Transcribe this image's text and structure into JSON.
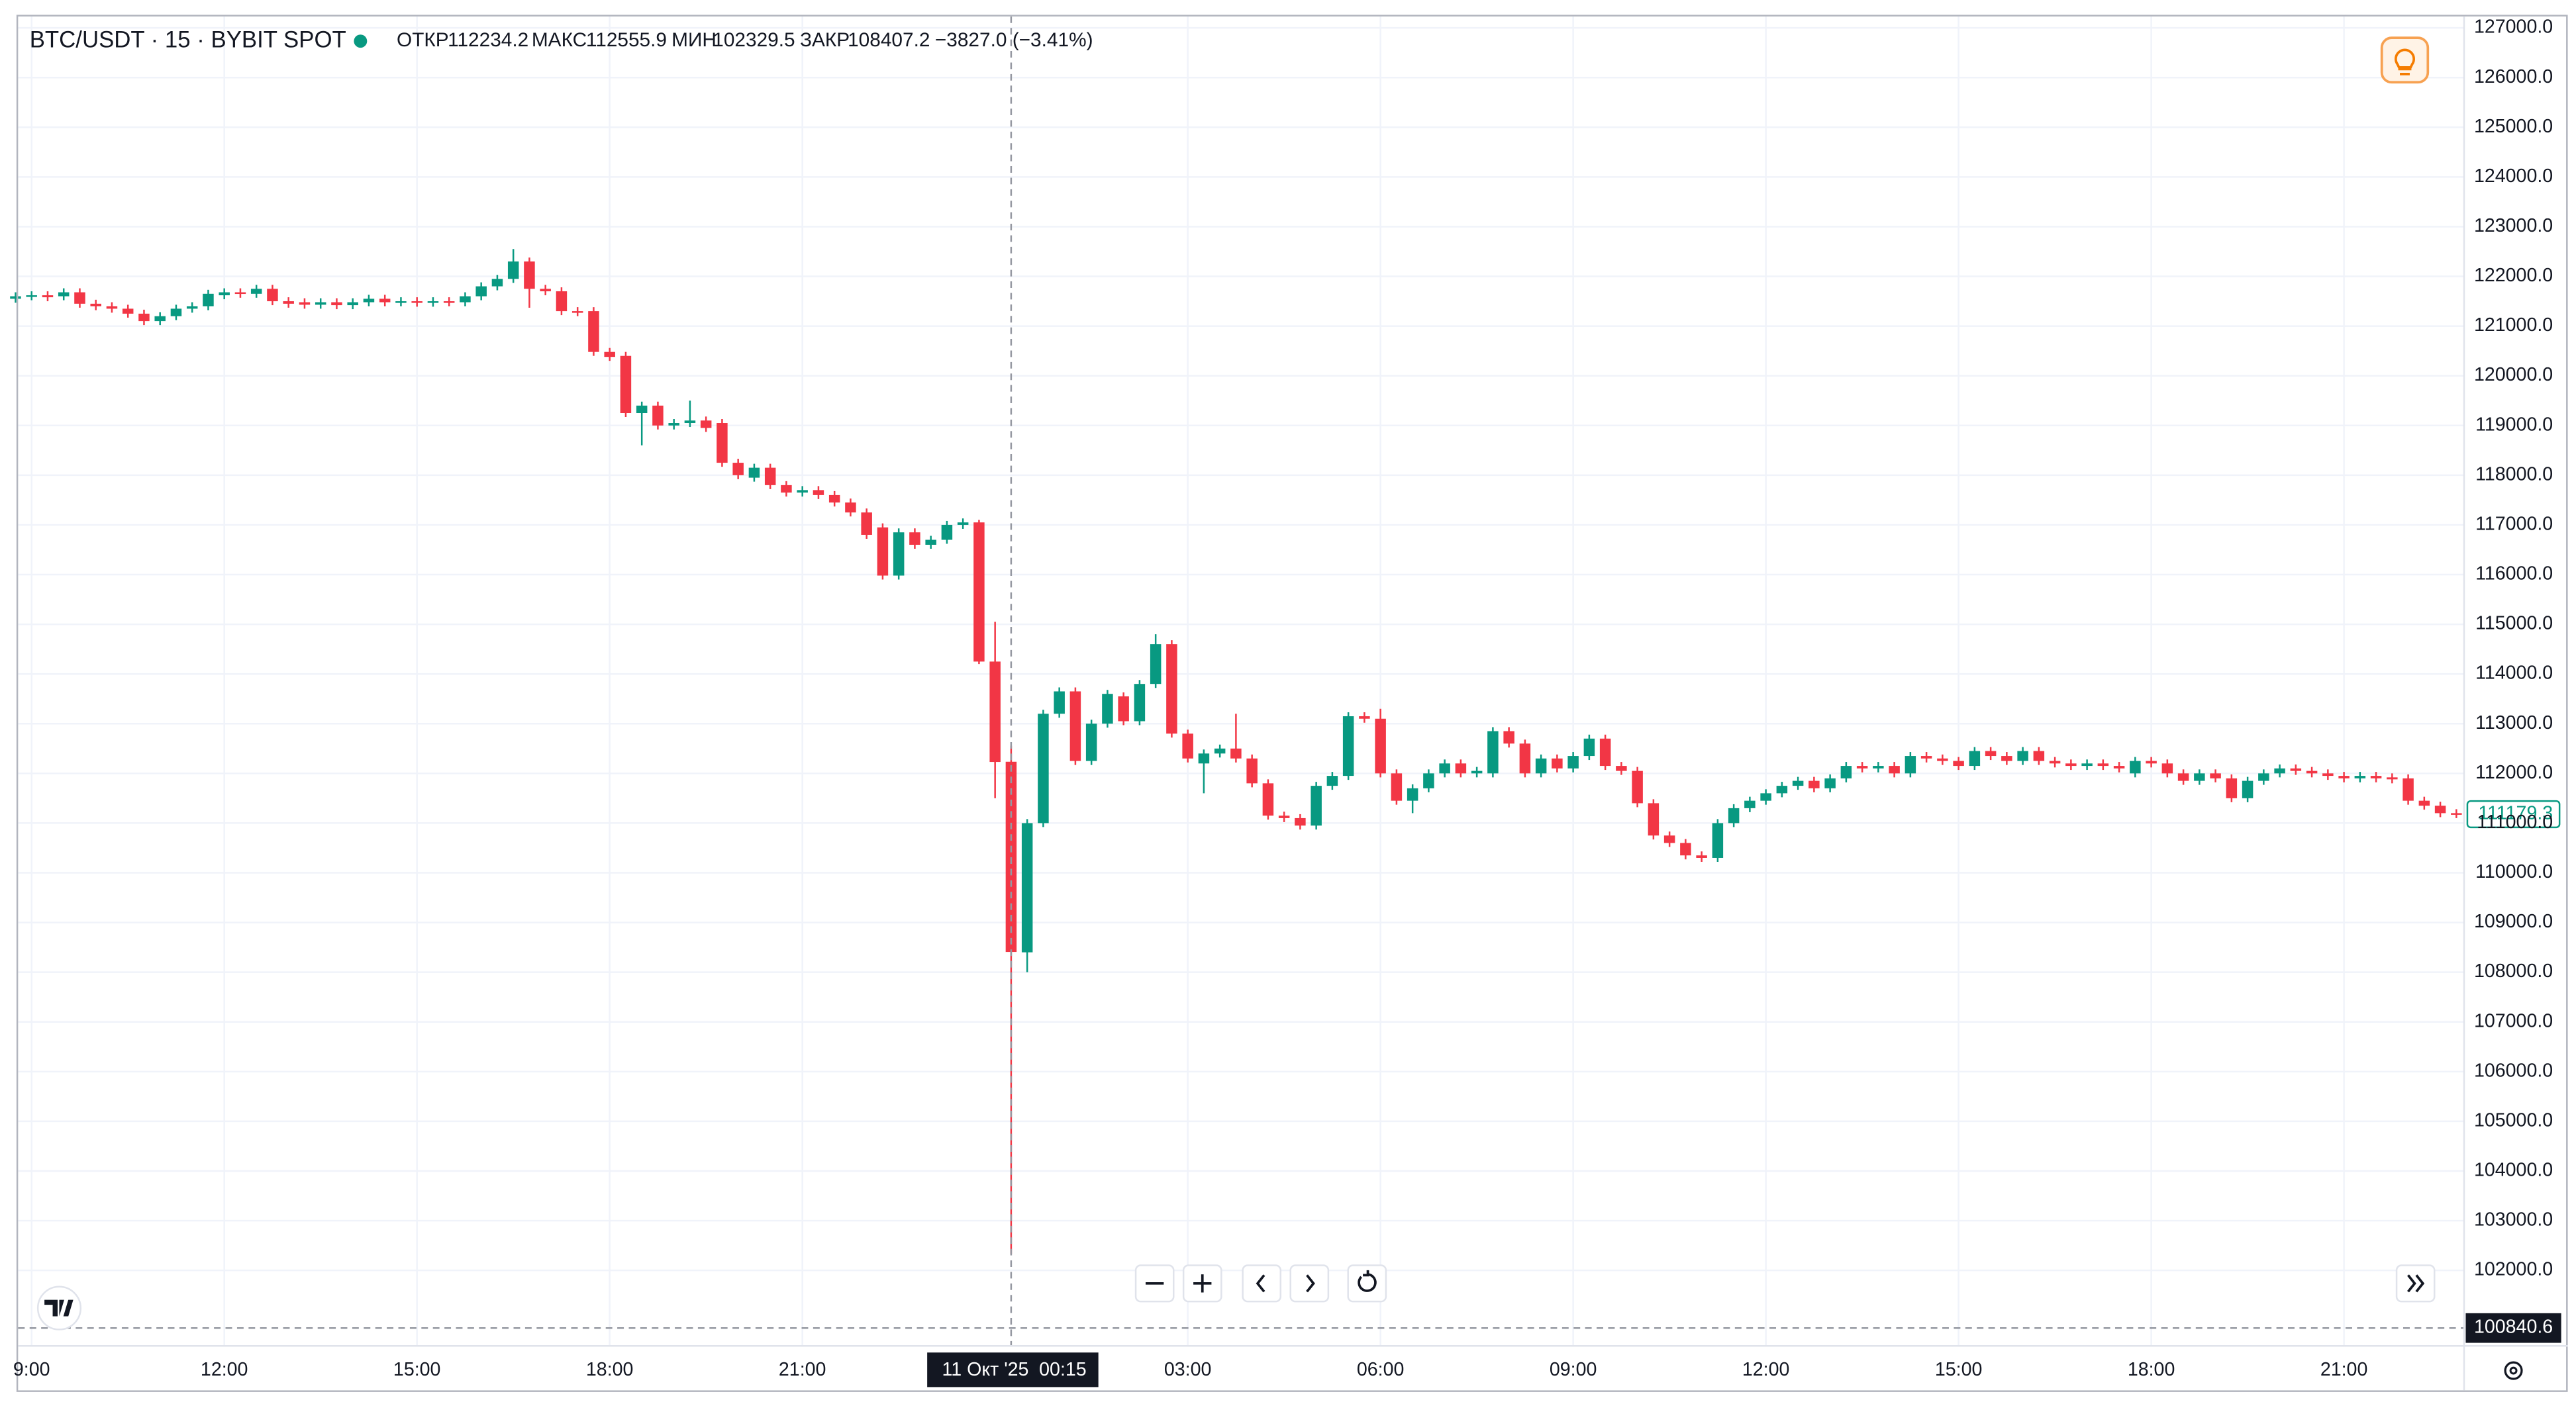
{
  "chart_data": {
    "type": "candlestick",
    "title": "BTC/USDT · 15 · BYBIT SPOT",
    "legend_labels": {
      "open": "ОТКР",
      "high": "МАКС",
      "low": "МИН",
      "close": "ЗАКР"
    },
    "change_label": "−3827.0 (−3.41%)",
    "up_color": "#089981",
    "down_color": "#f23645",
    "grid": true,
    "xlim": [
      8.79,
      46.87
    ],
    "ylim": [
      100480,
      127230
    ],
    "xticks": [
      {
        "value": 9,
        "label": "9:00"
      },
      {
        "value": 12,
        "label": "12:00"
      },
      {
        "value": 15,
        "label": "15:00"
      },
      {
        "value": 18,
        "label": "18:00"
      },
      {
        "value": 21,
        "label": "21:00"
      },
      {
        "value": 27,
        "label": "03:00"
      },
      {
        "value": 30,
        "label": "06:00"
      },
      {
        "value": 33,
        "label": "09:00"
      },
      {
        "value": 36,
        "label": "12:00"
      },
      {
        "value": 39,
        "label": "15:00"
      },
      {
        "value": 42,
        "label": "18:00"
      },
      {
        "value": 45,
        "label": "21:00"
      }
    ],
    "yticks": [
      {
        "value": 102000,
        "label": "102000.0"
      },
      {
        "value": 103000,
        "label": "103000.0"
      },
      {
        "value": 104000,
        "label": "104000.0"
      },
      {
        "value": 105000,
        "label": "105000.0"
      },
      {
        "value": 106000,
        "label": "106000.0"
      },
      {
        "value": 107000,
        "label": "107000.0"
      },
      {
        "value": 108000,
        "label": "108000.0"
      },
      {
        "value": 109000,
        "label": "109000.0"
      },
      {
        "value": 110000,
        "label": "110000.0"
      },
      {
        "value": 111000,
        "label": "111000.0"
      },
      {
        "value": 112000,
        "label": "112000.0"
      },
      {
        "value": 113000,
        "label": "113000.0"
      },
      {
        "value": 114000,
        "label": "114000.0"
      },
      {
        "value": 115000,
        "label": "115000.0"
      },
      {
        "value": 116000,
        "label": "116000.0"
      },
      {
        "value": 117000,
        "label": "117000.0"
      },
      {
        "value": 118000,
        "label": "118000.0"
      },
      {
        "value": 119000,
        "label": "119000.0"
      },
      {
        "value": 120000,
        "label": "120000.0"
      },
      {
        "value": 121000,
        "label": "121000.0"
      },
      {
        "value": 122000,
        "label": "122000.0"
      },
      {
        "value": 123000,
        "label": "123000.0"
      },
      {
        "value": 124000,
        "label": "124000.0"
      },
      {
        "value": 125000,
        "label": "125000.0"
      },
      {
        "value": 126000,
        "label": "126000.0"
      },
      {
        "value": 127000,
        "label": "127000.0"
      }
    ],
    "crosshair": {
      "date": "11 Окт '25",
      "time": "00:15",
      "price": 100840.6
    },
    "x": [
      8.75,
      9,
      9.25,
      9.5,
      9.75,
      10,
      10.25,
      10.5,
      10.75,
      11,
      11.25,
      11.5,
      11.75,
      12,
      12.25,
      12.5,
      12.75,
      13,
      13.25,
      13.5,
      13.75,
      14,
      14.25,
      14.5,
      14.75,
      15,
      15.25,
      15.5,
      15.75,
      16,
      16.25,
      16.5,
      16.75,
      17,
      17.25,
      17.5,
      17.75,
      18,
      18.25,
      18.5,
      18.75,
      19,
      19.25,
      19.5,
      19.75,
      20,
      20.25,
      20.5,
      20.75,
      21,
      21.25,
      21.5,
      21.75,
      22,
      22.25,
      22.5,
      22.75,
      23,
      23.25,
      23.5,
      23.75,
      24,
      24.25,
      24.5,
      24.75,
      25,
      25.25,
      25.5,
      25.75,
      26,
      26.25,
      26.5,
      26.75,
      27,
      27.25,
      27.5,
      27.75,
      28,
      28.25,
      28.5,
      28.75,
      29,
      29.25,
      29.5,
      29.75,
      30,
      30.25,
      30.5,
      30.75,
      31,
      31.25,
      31.5,
      31.75,
      32,
      32.25,
      32.5,
      32.75,
      33,
      33.25,
      33.5,
      33.75,
      34,
      34.25,
      34.5,
      34.75,
      35,
      35.25,
      35.5,
      35.75,
      36,
      36.25,
      36.5,
      36.75,
      37,
      37.25,
      37.5,
      37.75,
      38,
      38.25,
      38.5,
      38.75,
      39,
      39.25,
      39.5,
      39.75,
      40,
      40.25,
      40.5,
      40.75,
      41,
      41.25,
      41.5,
      41.75,
      42,
      42.25,
      42.5,
      42.75,
      43,
      43.25,
      43.5,
      43.75,
      44,
      44.25,
      44.5,
      44.75,
      45,
      45.25,
      45.5,
      45.75,
      46,
      46.25,
      46.5,
      46.75
    ],
    "open": [
      121550,
      121600,
      121620,
      121600,
      121680,
      121450,
      121400,
      121350,
      121250,
      121100,
      121200,
      121350,
      121400,
      121620,
      121680,
      121650,
      121750,
      121500,
      121480,
      121430,
      121480,
      121420,
      121480,
      121550,
      121480,
      121500,
      121470,
      121500,
      121480,
      121600,
      121800,
      121950,
      122300,
      121750,
      121700,
      121300,
      121300,
      120480,
      120400,
      119250,
      119400,
      119000,
      119050,
      119100,
      119050,
      118250,
      117950,
      118150,
      117800,
      117650,
      117700,
      117600,
      117450,
      117250,
      116950,
      115980,
      116850,
      116600,
      116700,
      117000,
      117050,
      114250,
      112234.2,
      108400,
      111000,
      113200,
      113650,
      112250,
      113000,
      113550,
      113050,
      113800,
      114600,
      112800,
      112200,
      112400,
      112500,
      112300,
      111800,
      111150,
      111100,
      110950,
      111750,
      111950,
      113150,
      113100,
      112000,
      111450,
      111700,
      112000,
      112200,
      112000,
      112000,
      112850,
      112600,
      112000,
      112300,
      112100,
      112350,
      112700,
      112150,
      112050,
      111400,
      110750,
      110600,
      110350,
      110300,
      111000,
      111300,
      111450,
      111600,
      111750,
      111850,
      111700,
      111900,
      112150,
      112100,
      112150,
      112000,
      112350,
      112300,
      112250,
      112150,
      112450,
      112350,
      112250,
      112450,
      112250,
      112200,
      112150,
      112200,
      112150,
      112000,
      112250,
      112200,
      112000,
      111850,
      112000,
      111900,
      111500,
      111850,
      112000,
      112100,
      112050,
      112000,
      111950,
      111900,
      111950,
      111920,
      111900,
      111450,
      111350,
      111200
    ],
    "high": [
      121680,
      121700,
      121700,
      121760,
      121760,
      121530,
      121480,
      121430,
      121330,
      121280,
      121430,
      121480,
      121730,
      121760,
      121760,
      121830,
      121830,
      121580,
      121560,
      121560,
      121560,
      121560,
      121630,
      121630,
      121580,
      121580,
      121580,
      121580,
      121680,
      121880,
      122030,
      122550,
      122380,
      121830,
      121780,
      121380,
      121380,
      120560,
      120480,
      119480,
      119480,
      119130,
      119500,
      119180,
      119130,
      118330,
      118230,
      118230,
      117880,
      117780,
      117780,
      117680,
      117530,
      117330,
      117030,
      116930,
      116930,
      116780,
      117080,
      117130,
      117100,
      115050,
      112555.9,
      111080,
      113280,
      113730,
      113730,
      113080,
      113680,
      113630,
      113880,
      114800,
      114680,
      112880,
      112480,
      112580,
      113200,
      112380,
      111880,
      111230,
      111180,
      111830,
      112030,
      113230,
      113230,
      113300,
      112080,
      111780,
      112080,
      112280,
      112280,
      112130,
      112930,
      112930,
      112680,
      112380,
      112380,
      112430,
      112780,
      112780,
      112230,
      112130,
      111480,
      110830,
      110680,
      110430,
      111080,
      111380,
      111530,
      111680,
      111830,
      111930,
      111930,
      111980,
      112230,
      112230,
      112230,
      112230,
      112430,
      112430,
      112380,
      112330,
      112530,
      112530,
      112430,
      112530,
      112530,
      112330,
      112280,
      112280,
      112280,
      112230,
      112330,
      112330,
      112280,
      112080,
      112080,
      112080,
      111980,
      111930,
      112080,
      112180,
      112180,
      112130,
      112080,
      112030,
      112030,
      112030,
      112000,
      111980,
      111530,
      111430,
      111280
    ],
    "low": [
      121470,
      121520,
      121500,
      121520,
      121370,
      121320,
      121270,
      121170,
      121020,
      121020,
      121120,
      121270,
      121320,
      121540,
      121570,
      121570,
      121420,
      121370,
      121350,
      121350,
      121340,
      121340,
      121400,
      121400,
      121400,
      121390,
      121390,
      121400,
      121400,
      121520,
      121720,
      121870,
      121370,
      121620,
      121220,
      121200,
      120400,
      120300,
      119170,
      118600,
      118920,
      118920,
      118970,
      118870,
      118170,
      117920,
      117870,
      117720,
      117570,
      117570,
      117520,
      117370,
      117170,
      116720,
      115900,
      115900,
      116520,
      116520,
      116620,
      116920,
      114200,
      111500,
      102329.5,
      108000,
      110920,
      113120,
      112170,
      112170,
      112920,
      112970,
      112970,
      113720,
      112720,
      112220,
      111600,
      112320,
      112220,
      111720,
      111070,
      111020,
      110870,
      110870,
      111670,
      111870,
      113020,
      111920,
      111370,
      111200,
      111620,
      111920,
      111920,
      111920,
      111920,
      112520,
      111920,
      111920,
      112020,
      112020,
      112270,
      112070,
      111970,
      111320,
      110670,
      110520,
      110270,
      110220,
      110220,
      110920,
      111220,
      111370,
      111520,
      111670,
      111620,
      111620,
      111820,
      112020,
      112020,
      111920,
      111920,
      112220,
      112170,
      112070,
      112070,
      112270,
      112170,
      112170,
      112170,
      112120,
      112070,
      112070,
      112070,
      112020,
      111920,
      112120,
      111920,
      111770,
      111770,
      111820,
      111420,
      111420,
      111770,
      111920,
      111970,
      111920,
      111870,
      111820,
      111820,
      111820,
      111800,
      111370,
      111270,
      111120,
      111100
    ],
    "close": [
      121600,
      121620,
      121580,
      121680,
      121450,
      121400,
      121350,
      121250,
      121100,
      121200,
      121350,
      121400,
      121650,
      121680,
      121650,
      121750,
      121500,
      121450,
      121430,
      121480,
      121420,
      121480,
      121550,
      121480,
      121500,
      121470,
      121500,
      121480,
      121600,
      121800,
      121950,
      122300,
      121750,
      121700,
      121300,
      121280,
      120480,
      120380,
      119250,
      119400,
      119000,
      119050,
      119100,
      118950,
      118250,
      118000,
      118150,
      117800,
      117650,
      117700,
      117600,
      117450,
      117250,
      116800,
      115980,
      116850,
      116600,
      116700,
      117000,
      117050,
      114250,
      112230,
      108407.2,
      111000,
      113200,
      113650,
      112250,
      113000,
      113600,
      113050,
      113800,
      114600,
      112800,
      112300,
      112400,
      112500,
      112300,
      111800,
      111150,
      111100,
      110950,
      111750,
      111950,
      113150,
      113100,
      112000,
      111450,
      111700,
      112000,
      112200,
      112000,
      112050,
      112850,
      112600,
      112000,
      112300,
      112100,
      112350,
      112700,
      112150,
      112050,
      111400,
      110750,
      110600,
      110350,
      110300,
      111000,
      111300,
      111450,
      111600,
      111750,
      111850,
      111700,
      111900,
      112150,
      112100,
      112150,
      112000,
      112350,
      112300,
      112250,
      112150,
      112450,
      112350,
      112250,
      112450,
      112250,
      112200,
      112150,
      112200,
      112150,
      112100,
      112250,
      112200,
      112000,
      111850,
      112000,
      111900,
      111500,
      111850,
      112000,
      112100,
      112050,
      112000,
      111950,
      111900,
      111950,
      111900,
      111880,
      111450,
      111350,
      111200,
      111179.3
    ]
  }
}
